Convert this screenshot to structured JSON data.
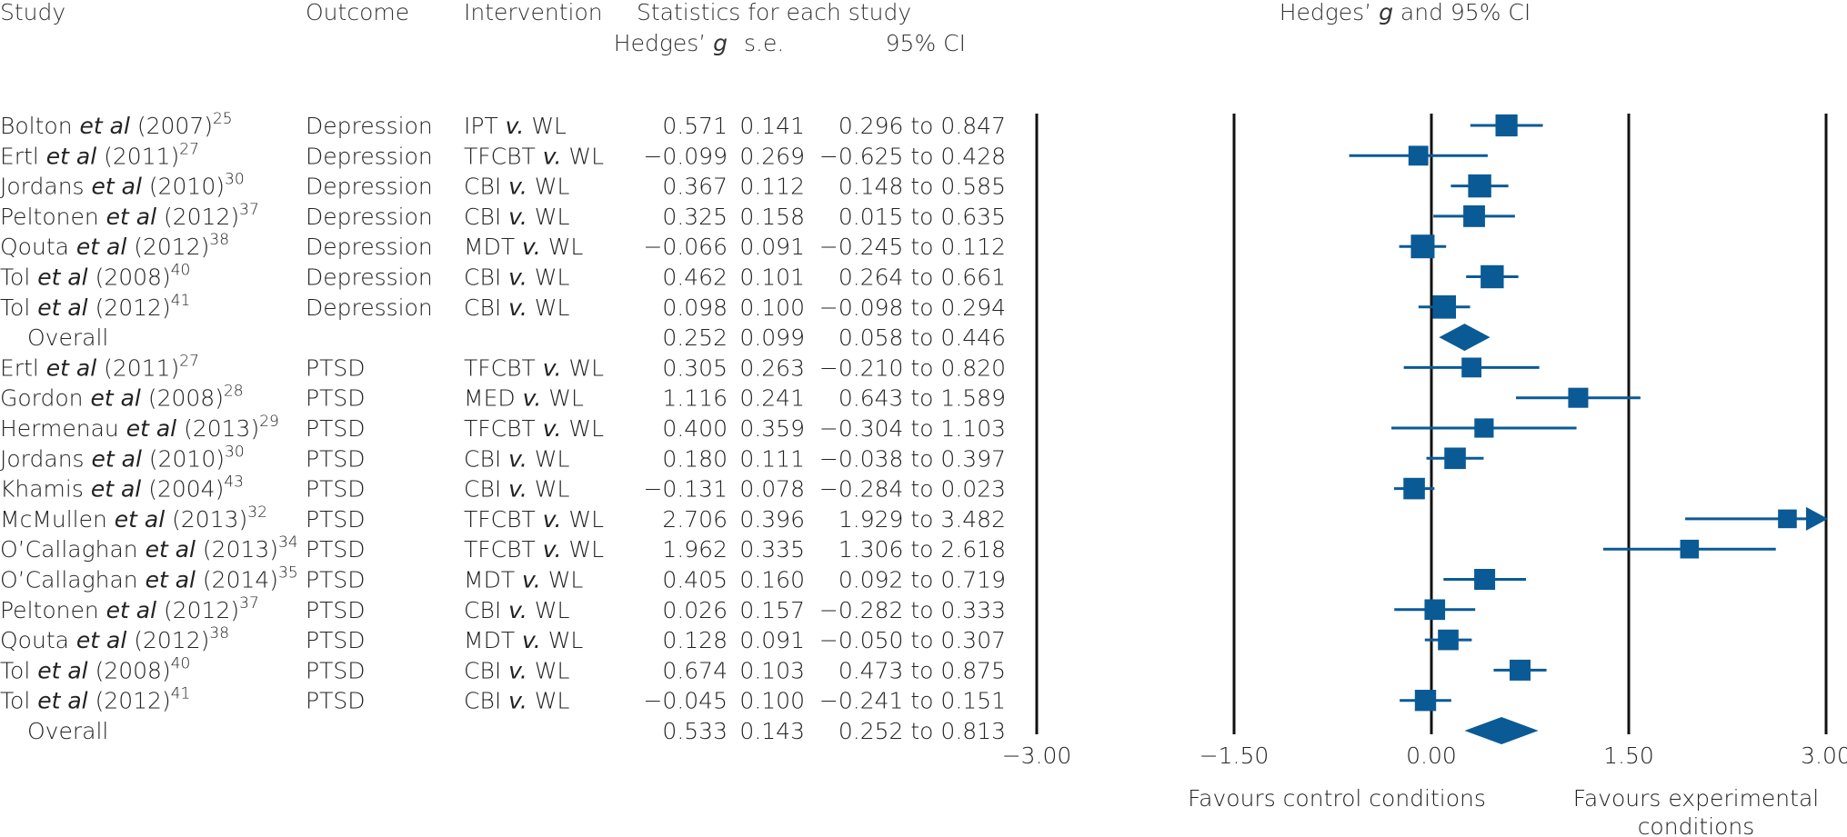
{
  "headers": {
    "study": "Study",
    "outcome": "Outcome",
    "intervention": "Intervention",
    "statistics": "Statistics for each study",
    "hedges_g": "Hedges’ g",
    "se": "s.e.",
    "ci95": "95% CI",
    "plot_title": "Hedges’ g and 95% CI"
  },
  "chart_data": {
    "type": "forest",
    "title": "Hedges’ g and 95% CI",
    "xlim": [
      -3.0,
      3.0
    ],
    "x_ticks": [
      "−3.00",
      "−1.50",
      "0.00",
      "1.50",
      "3.00"
    ],
    "x_tick_values": [
      -3.0,
      -1.5,
      0.0,
      1.5,
      3.0
    ],
    "favours_left": "Favours control conditions",
    "favours_right_line1": "Favours experimental",
    "favours_right_line2": "conditions",
    "rows": [
      {
        "author": "Bolton",
        "etal": "et al",
        "year": "(2007)",
        "ref": "25",
        "outcome": "Depression",
        "int": "IPT",
        "wl": "WL",
        "g": 0.571,
        "g_text": "0.571",
        "se": "0.141",
        "lo": 0.296,
        "hi": 0.847,
        "ci_text": "0.296 to 0.847",
        "weight": 0.85
      },
      {
        "author": "Ertl",
        "etal": "et al",
        "year": "(2011)",
        "ref": "27",
        "outcome": "Depression",
        "int": "TFCBT",
        "wl": "WL",
        "g": -0.099,
        "g_text": "−0.099",
        "se": "0.269",
        "lo": -0.625,
        "hi": 0.428,
        "ci_text": "−0.625 to 0.428",
        "weight": 0.65
      },
      {
        "author": "Jordans",
        "etal": "et al",
        "year": "(2010)",
        "ref": "30",
        "outcome": "Depression",
        "int": "CBI",
        "wl": "WL",
        "g": 0.367,
        "g_text": "0.367",
        "se": "0.112",
        "lo": 0.148,
        "hi": 0.585,
        "ci_text": "0.148 to 0.585",
        "weight": 0.95
      },
      {
        "author": "Peltonen",
        "etal": "et al",
        "year": "(2012)",
        "ref": "37",
        "outcome": "Depression",
        "int": "CBI",
        "wl": "WL",
        "g": 0.325,
        "g_text": "0.325",
        "se": "0.158",
        "lo": 0.015,
        "hi": 0.635,
        "ci_text": "0.015 to 0.635",
        "weight": 0.82
      },
      {
        "author": "Qouta",
        "etal": "et al",
        "year": "(2012)",
        "ref": "38",
        "outcome": "Depression",
        "int": "MDT",
        "wl": "WL",
        "g": -0.066,
        "g_text": "−0.066",
        "se": "0.091",
        "lo": -0.245,
        "hi": 0.112,
        "ci_text": "−0.245 to 0.112",
        "weight": 1.0
      },
      {
        "author": "Tol",
        "etal": "et al",
        "year": "(2008)",
        "ref": "40",
        "outcome": "Depression",
        "int": "CBI",
        "wl": "WL",
        "g": 0.462,
        "g_text": "0.462",
        "se": "0.101",
        "lo": 0.264,
        "hi": 0.661,
        "ci_text": "0.264 to 0.661",
        "weight": 0.95
      },
      {
        "author": "Tol",
        "etal": "et al",
        "year": "(2012)",
        "ref": "41",
        "outcome": "Depression",
        "int": "CBI",
        "wl": "WL",
        "g": 0.098,
        "g_text": "0.098",
        "se": "0.100",
        "lo": -0.098,
        "hi": 0.294,
        "ci_text": "−0.098 to 0.294",
        "weight": 0.97
      },
      {
        "overall": true,
        "label": "Overall",
        "g": 0.252,
        "g_text": "0.252",
        "se": "0.099",
        "lo": 0.058,
        "hi": 0.446,
        "ci_text": "0.058 to 0.446"
      },
      {
        "author": "Ertl",
        "etal": "et al",
        "year": "(2011)",
        "ref": "27",
        "outcome": "PTSD",
        "int": "TFCBT",
        "wl": "WL",
        "g": 0.305,
        "g_text": "0.305",
        "se": "0.263",
        "lo": -0.21,
        "hi": 0.82,
        "ci_text": "−0.210 to 0.820",
        "weight": 0.65
      },
      {
        "author": "Gordon",
        "etal": "et al",
        "year": "(2008)",
        "ref": "28",
        "outcome": "PTSD",
        "int": "MED",
        "wl": "WL",
        "g": 1.116,
        "g_text": "1.116",
        "se": "0.241",
        "lo": 0.643,
        "hi": 1.589,
        "ci_text": "0.643 to 1.589",
        "weight": 0.67
      },
      {
        "author": "Hermenau",
        "etal": "et al",
        "year": "(2013)",
        "ref": "29",
        "outcome": "PTSD",
        "int": "TFCBT",
        "wl": "WL",
        "g": 0.4,
        "g_text": "0.400",
        "se": "0.359",
        "lo": -0.304,
        "hi": 1.103,
        "ci_text": "−0.304 to 1.103",
        "weight": 0.6
      },
      {
        "author": "Jordans",
        "etal": "et al",
        "year": "(2010)",
        "ref": "30",
        "outcome": "PTSD",
        "int": "CBI",
        "wl": "WL",
        "g": 0.18,
        "g_text": "0.180",
        "se": "0.111",
        "lo": -0.038,
        "hi": 0.397,
        "ci_text": "−0.038 to 0.397",
        "weight": 0.8
      },
      {
        "author": "Khamis",
        "etal": "et al",
        "year": "(2004)",
        "ref": "43",
        "outcome": "PTSD",
        "int": "CBI",
        "wl": "WL",
        "g": -0.131,
        "g_text": "−0.131",
        "se": "0.078",
        "lo": -0.284,
        "hi": 0.023,
        "ci_text": "−0.284 to 0.023",
        "weight": 0.8
      },
      {
        "author": "McMullen",
        "etal": "et al",
        "year": "(2013)",
        "ref": "32",
        "outcome": "PTSD",
        "int": "TFCBT",
        "wl": "WL",
        "g": 2.706,
        "g_text": "2.706",
        "se": "0.396",
        "lo": 1.929,
        "hi": 3.482,
        "ci_text": "1.929 to 3.482",
        "weight": 0.55,
        "arrow_right": true
      },
      {
        "author": "O’Callaghan",
        "etal": "et al",
        "year": "(2013)",
        "ref": "34",
        "outcome": "PTSD",
        "int": "TFCBT",
        "wl": "WL",
        "g": 1.962,
        "g_text": "1.962",
        "se": "0.335",
        "lo": 1.306,
        "hi": 2.618,
        "ci_text": "1.306 to 2.618",
        "weight": 0.55
      },
      {
        "author": "O’Callaghan",
        "etal": "et al",
        "year": "(2014)",
        "ref": "35",
        "outcome": "PTSD",
        "int": "MDT",
        "wl": "WL",
        "g": 0.405,
        "g_text": "0.405",
        "se": "0.160",
        "lo": 0.092,
        "hi": 0.719,
        "ci_text": "0.092 to 0.719",
        "weight": 0.75
      },
      {
        "author": "Peltonen",
        "etal": "et al",
        "year": "(2012)",
        "ref": "37",
        "outcome": "PTSD",
        "int": "CBI",
        "wl": "WL",
        "g": 0.026,
        "g_text": "0.026",
        "se": "0.157",
        "lo": -0.282,
        "hi": 0.333,
        "ci_text": "−0.282 to 0.333",
        "weight": 0.72
      },
      {
        "author": "Qouta",
        "etal": "et al",
        "year": "(2012)",
        "ref": "38",
        "outcome": "PTSD",
        "int": "MDT",
        "wl": "WL",
        "g": 0.128,
        "g_text": "0.128",
        "se": "0.091",
        "lo": -0.05,
        "hi": 0.307,
        "ci_text": "−0.050 to 0.307",
        "weight": 0.72
      },
      {
        "author": "Tol",
        "etal": "et al",
        "year": "(2008)",
        "ref": "40",
        "outcome": "PTSD",
        "int": "CBI",
        "wl": "WL",
        "g": 0.674,
        "g_text": "0.674",
        "se": "0.103",
        "lo": 0.473,
        "hi": 0.875,
        "ci_text": "0.473 to 0.875",
        "weight": 0.75
      },
      {
        "author": "Tol",
        "etal": "et al",
        "year": "(2012)",
        "ref": "41",
        "outcome": "PTSD",
        "int": "CBI",
        "wl": "WL",
        "g": -0.045,
        "g_text": "−0.045",
        "se": "0.100",
        "lo": -0.241,
        "hi": 0.151,
        "ci_text": "−0.241 to 0.151",
        "weight": 0.78
      },
      {
        "overall": true,
        "label": "Overall",
        "g": 0.533,
        "g_text": "0.533",
        "se": "0.143",
        "lo": 0.252,
        "hi": 0.813,
        "ci_text": "0.252 to 0.813"
      }
    ]
  }
}
